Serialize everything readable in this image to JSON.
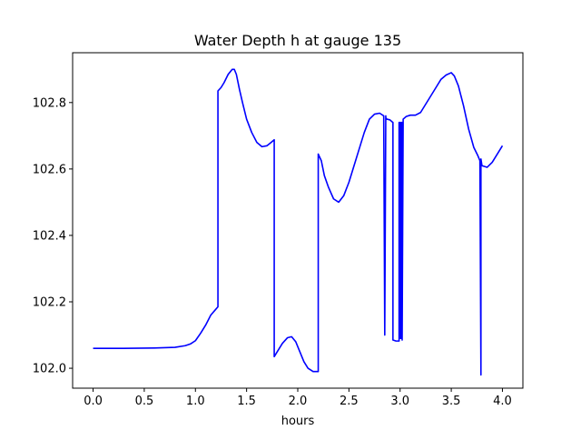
{
  "chart_data": {
    "type": "line",
    "title": "Water Depth h at gauge 135",
    "xlabel": "hours",
    "ylabel": "",
    "xlim": [
      -0.2,
      4.2
    ],
    "ylim": [
      101.94,
      102.95
    ],
    "xticks": [
      0.0,
      0.5,
      1.0,
      1.5,
      2.0,
      2.5,
      3.0,
      3.5,
      4.0
    ],
    "xtick_labels": [
      "0.0",
      "0.5",
      "1.0",
      "1.5",
      "2.0",
      "2.5",
      "3.0",
      "3.5",
      "4.0"
    ],
    "yticks": [
      102.0,
      102.2,
      102.4,
      102.6,
      102.8
    ],
    "ytick_labels": [
      "102.0",
      "102.2",
      "102.4",
      "102.6",
      "102.8"
    ],
    "grid": false,
    "legend": "none",
    "series": [
      {
        "color": "#0000ff",
        "x": [
          0.0,
          0.3,
          0.6,
          0.8,
          0.9,
          0.95,
          1.0,
          1.05,
          1.1,
          1.15,
          1.2,
          1.22,
          1.22,
          1.25,
          1.28,
          1.32,
          1.36,
          1.38,
          1.4,
          1.43,
          1.46,
          1.5,
          1.55,
          1.6,
          1.65,
          1.7,
          1.74,
          1.77,
          1.77,
          1.8,
          1.85,
          1.9,
          1.94,
          1.98,
          2.02,
          2.06,
          2.1,
          2.15,
          2.2,
          2.2,
          2.23,
          2.26,
          2.3,
          2.35,
          2.4,
          2.45,
          2.5,
          2.55,
          2.6,
          2.65,
          2.7,
          2.75,
          2.8,
          2.84,
          2.85,
          2.86,
          2.86,
          2.87,
          2.9,
          2.93,
          2.93,
          2.96,
          2.99,
          2.99,
          3.0,
          3.0,
          3.01,
          3.01,
          3.02,
          3.02,
          3.03,
          3.06,
          3.1,
          3.15,
          3.2,
          3.25,
          3.3,
          3.35,
          3.4,
          3.45,
          3.5,
          3.53,
          3.57,
          3.62,
          3.67,
          3.72,
          3.76,
          3.78,
          3.79,
          3.79,
          3.8,
          3.85,
          3.9,
          3.95,
          4.0
        ],
        "y": [
          102.06,
          102.06,
          102.061,
          102.063,
          102.068,
          102.073,
          102.083,
          102.105,
          102.13,
          102.16,
          102.178,
          102.185,
          102.835,
          102.845,
          102.86,
          102.885,
          102.9,
          102.9,
          102.885,
          102.84,
          102.8,
          102.75,
          102.71,
          102.68,
          102.667,
          102.67,
          102.68,
          102.688,
          102.035,
          102.05,
          102.075,
          102.092,
          102.095,
          102.08,
          102.05,
          102.02,
          102.0,
          101.99,
          101.99,
          102.645,
          102.625,
          102.58,
          102.545,
          102.51,
          102.5,
          102.52,
          102.56,
          102.61,
          102.66,
          102.71,
          102.75,
          102.765,
          102.768,
          102.76,
          102.1,
          102.76,
          102.755,
          102.75,
          102.748,
          102.74,
          102.085,
          102.082,
          102.082,
          102.74,
          102.74,
          102.09,
          102.09,
          102.74,
          102.74,
          102.085,
          102.75,
          102.758,
          102.762,
          102.762,
          102.77,
          102.795,
          102.82,
          102.845,
          102.87,
          102.883,
          102.89,
          102.88,
          102.85,
          102.79,
          102.72,
          102.665,
          102.64,
          102.625,
          101.98,
          102.63,
          102.61,
          102.605,
          102.62,
          102.645,
          102.67
        ]
      }
    ]
  }
}
